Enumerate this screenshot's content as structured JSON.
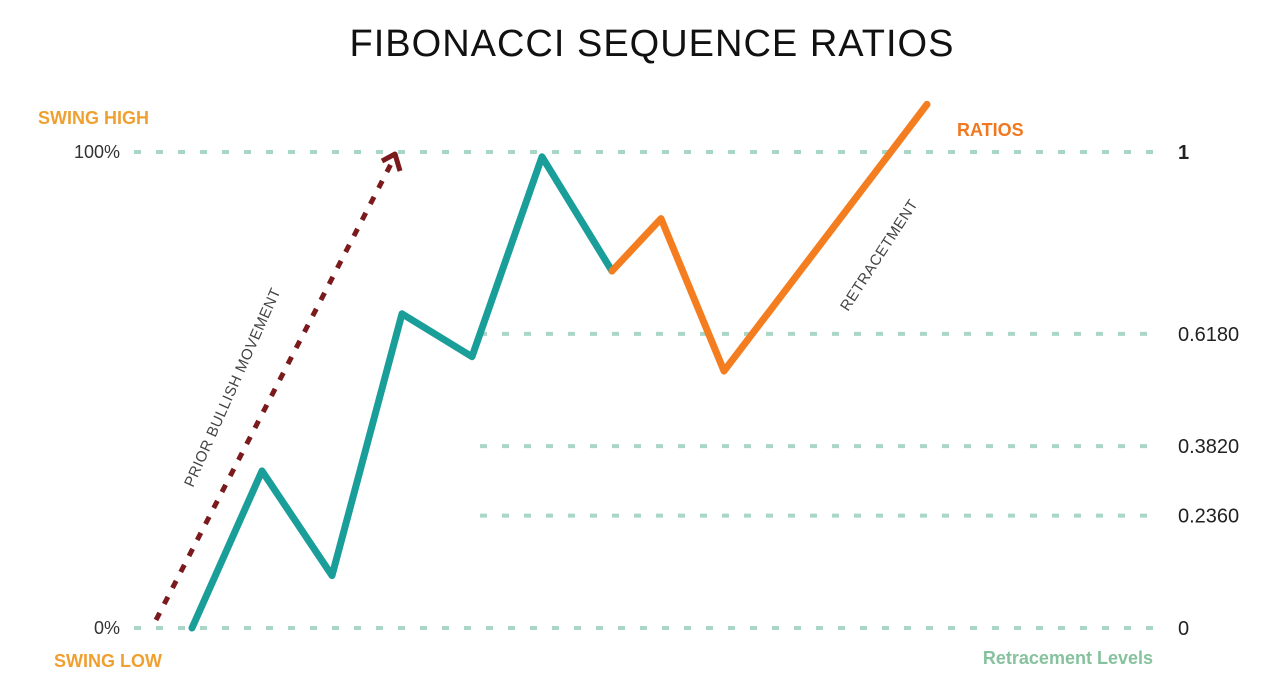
{
  "chart_data": {
    "type": "line",
    "title": "FIBONACCI SEQUENCE RATIOS",
    "swing_high_label": "SWING HIGH",
    "swing_low_label": "SWING LOW",
    "ratios_label": "RATIOS",
    "y_left_labels": [
      "100%",
      "0%"
    ],
    "levels": [
      {
        "value": 1,
        "label": "1"
      },
      {
        "value": 0.618,
        "label": "0.6180"
      },
      {
        "value": 0.382,
        "label": "0.3820"
      },
      {
        "value": 0.236,
        "label": "0.2360"
      },
      {
        "value": 0,
        "label": "0"
      }
    ],
    "level_axis_label": "Retracement Levels",
    "annotations": {
      "prior_movement": "PRIOR BULLISH MOVEMENT",
      "retracement": "RETRACETMENT"
    },
    "series": [
      {
        "values": [
          [
            0,
            0
          ],
          [
            1,
            0.33
          ],
          [
            2,
            0.11
          ],
          [
            3,
            0.66
          ],
          [
            4,
            0.57
          ],
          [
            5,
            0.99
          ],
          [
            6,
            0.75
          ]
        ]
      },
      {
        "values": [
          [
            6,
            0.75
          ],
          [
            6.7,
            0.86
          ],
          [
            7.6,
            0.54
          ],
          [
            10.5,
            1.1
          ]
        ]
      }
    ],
    "xlim": [
      -0.5,
      10.8
    ],
    "ylim": [
      0,
      1
    ],
    "colors": {
      "up_trend": "#1a9e9a",
      "retracement": "#f47d20",
      "arrow": "#7a1a1d",
      "level_line": "#a9d6c7",
      "label_orange": "#f0a030",
      "ratios_orange": "#f07820",
      "footer_green": "#86c29e"
    }
  }
}
